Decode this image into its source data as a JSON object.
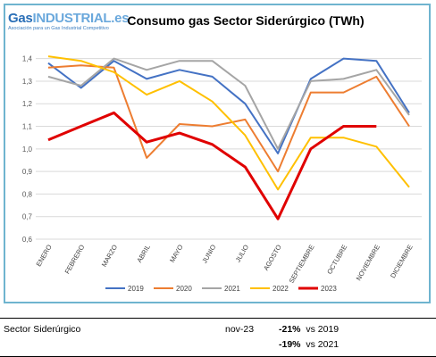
{
  "logo": {
    "brand_gas": "Gas",
    "brand_rest": "INDUSTRIAL.es",
    "tagline": "Asociación para un Gas Industrial Competitivo"
  },
  "chart_data": {
    "type": "line",
    "title": "Consumo gas Sector Siderúrgico (TWh)",
    "xlabel": "",
    "ylabel": "",
    "categories": [
      "ENERO",
      "FEBRERO",
      "MARZO",
      "ABRIL",
      "MAYO",
      "JUNIO",
      "JULIO",
      "AGOSTO",
      "SEPTIEMBRE",
      "OCTUBRE",
      "NOVIEMBRE",
      "DICIEMBRE"
    ],
    "ylim": [
      0.6,
      1.45
    ],
    "yticks": [
      "0,6",
      "0,7",
      "0,8",
      "0,9",
      "1,0",
      "1,1",
      "1,2",
      "1,3",
      "1,4"
    ],
    "ytick_values": [
      0.6,
      0.7,
      0.8,
      0.9,
      1.0,
      1.1,
      1.2,
      1.3,
      1.4
    ],
    "grid": true,
    "legend_position": "bottom",
    "series": [
      {
        "name": "2019",
        "color": "#4472c4",
        "values": [
          1.38,
          1.27,
          1.39,
          1.31,
          1.35,
          1.32,
          1.2,
          0.98,
          1.31,
          1.4,
          1.39,
          1.16
        ]
      },
      {
        "name": "2020",
        "color": "#ed7d31",
        "values": [
          1.36,
          1.37,
          1.36,
          0.96,
          1.11,
          1.1,
          1.13,
          0.9,
          1.25,
          1.25,
          1.32,
          1.1
        ]
      },
      {
        "name": "2021",
        "color": "#a5a5a5",
        "values": [
          1.32,
          1.28,
          1.4,
          1.35,
          1.39,
          1.39,
          1.28,
          1.0,
          1.3,
          1.31,
          1.35,
          1.15
        ]
      },
      {
        "name": "2022",
        "color": "#ffc000",
        "values": [
          1.41,
          1.39,
          1.34,
          1.24,
          1.3,
          1.21,
          1.06,
          0.82,
          1.05,
          1.05,
          1.01,
          0.83
        ]
      },
      {
        "name": "2023",
        "color": "#e00000",
        "values": [
          1.04,
          1.1,
          1.16,
          1.03,
          1.07,
          1.02,
          0.92,
          0.69,
          1.0,
          1.1,
          1.1,
          null
        ]
      }
    ]
  },
  "summary": {
    "sector_label": "Sector Siderúrgico",
    "period": "nov-23",
    "change_2019_pct": "-21%",
    "change_2019_text": "vs 2019",
    "change_2021_pct": "-19%",
    "change_2021_text": "vs 2021"
  }
}
